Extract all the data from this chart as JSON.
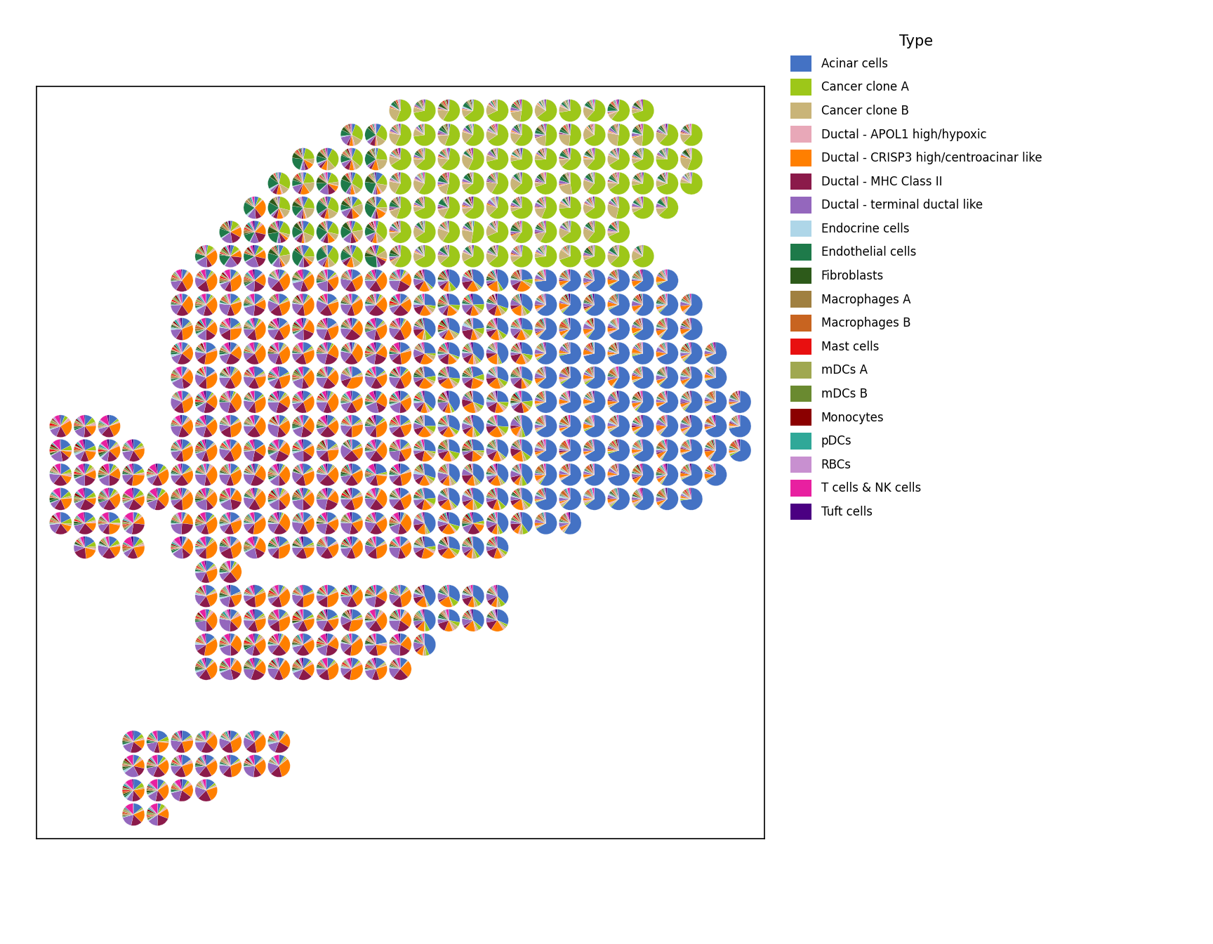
{
  "cell_types": [
    "Acinar cells",
    "Cancer clone A",
    "Cancer clone B",
    "Ductal - APOL1 high/hypoxic",
    "Ductal - CRISP3 high/centroacinar like",
    "Ductal - MHC Class II",
    "Ductal - terminal ductal like",
    "Endocrine cells",
    "Endothelial cells",
    "Fibroblasts",
    "Macrophages A",
    "Macrophages B",
    "Mast cells",
    "mDCs A",
    "mDCs B",
    "Monocytes",
    "pDCs",
    "RBCs",
    "T cells & NK cells",
    "Tuft cells"
  ],
  "colors": [
    "#4472C4",
    "#9DC719",
    "#C9B478",
    "#E8A8B8",
    "#FF7F00",
    "#8B1A4A",
    "#9467BD",
    "#AED6E8",
    "#1E7A4A",
    "#2D5A1A",
    "#A08040",
    "#C86420",
    "#E81010",
    "#A0A850",
    "#6A8A30",
    "#8B0000",
    "#30A898",
    "#C890D0",
    "#E820A0",
    "#4B0082"
  ],
  "title": "Type",
  "figsize": [
    17.28,
    13.44
  ],
  "dpi": 100
}
